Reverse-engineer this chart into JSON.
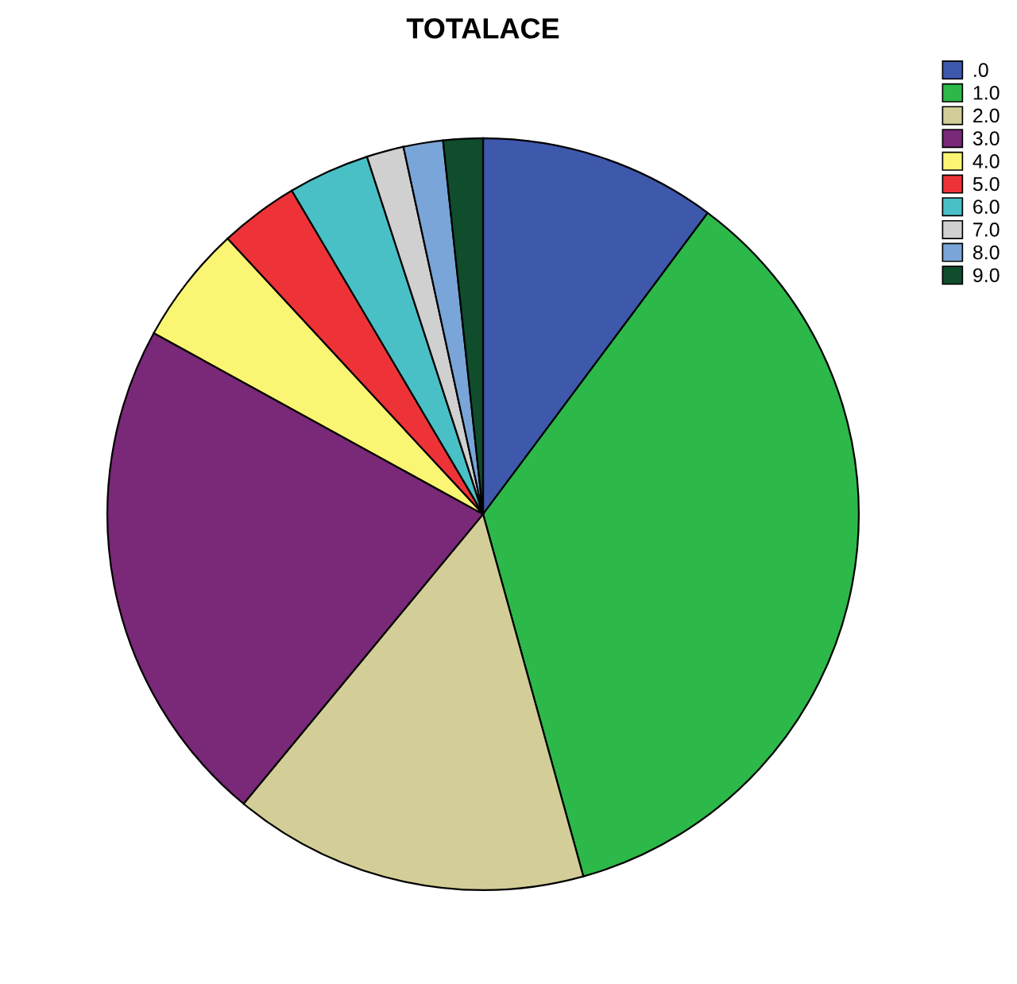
{
  "chart_data": {
    "type": "pie",
    "title": "TOTALACE",
    "categories": [
      ".0",
      "1.0",
      "2.0",
      "3.0",
      "4.0",
      "5.0",
      "6.0",
      "7.0",
      "8.0",
      "9.0"
    ],
    "values": [
      10.2,
      35.5,
      15.3,
      22.0,
      5.1,
      3.4,
      3.5,
      1.6,
      1.7,
      1.7
    ],
    "colors": [
      "#3e58ac",
      "#2db84a",
      "#d3ce97",
      "#7a2878",
      "#fbf574",
      "#ee3338",
      "#49c0c6",
      "#d0d0d0",
      "#7aa5d8",
      "#0f4d2c"
    ],
    "legend": "top right"
  }
}
